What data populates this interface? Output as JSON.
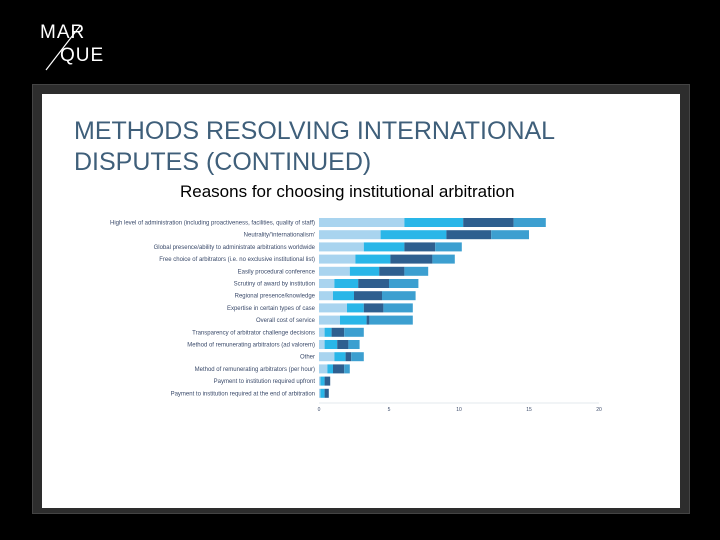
{
  "logo": {
    "line1": "MAR",
    "line2": "QUE"
  },
  "slide": {
    "title": "METHODS RESOLVING INTERNATIONAL DISPUTES (CONTINUED)",
    "subtitle": "Reasons for choosing institutional arbitration"
  },
  "colors": {
    "background": "#000000",
    "title": "#3f5f7a",
    "series": [
      "#a9d4ef",
      "#29b6e8",
      "#2e5f8f",
      "#3c9fd0"
    ]
  },
  "chart_data": {
    "type": "bar",
    "orientation": "horizontal",
    "stacked": true,
    "categories": [
      "High level of administration (including proactiveness, facilities, quality of staff)",
      "Neutrality/'internationalism'",
      "Global presence/ability to administrate arbitrations worldwide",
      "Free choice of arbitrators (i.e. no exclusive institutional list)",
      "Easily procedural conference",
      "Scrutiny of award by institution",
      "Regional presence/knowledge",
      "Expertise in certain types of case",
      "Overall cost of service",
      "Transparency of arbitrator challenge decisions",
      "Method of remunerating arbitrators (ad valorem)",
      "Other",
      "Method of remunerating arbitrators (per hour)",
      "Payment to institution required upfront",
      "Payment to institution required at the end of arbitration"
    ],
    "series": [
      {
        "values": [
          6.1,
          4.4,
          3.2,
          2.6,
          2.2,
          1.1,
          1.0,
          2.0,
          1.5,
          0.4,
          0.4,
          1.1,
          0.6,
          0.1,
          0.1
        ]
      },
      {
        "values": [
          4.2,
          4.7,
          2.9,
          2.5,
          2.1,
          1.7,
          1.5,
          1.2,
          1.9,
          0.5,
          0.9,
          0.8,
          0.4,
          0.3,
          0.3
        ]
      },
      {
        "values": [
          3.6,
          3.2,
          2.2,
          3.0,
          1.8,
          2.2,
          2.0,
          1.4,
          0.2,
          0.9,
          0.8,
          0.4,
          0.8,
          0.4,
          0.3
        ]
      },
      {
        "values": [
          2.3,
          2.7,
          1.9,
          1.6,
          1.7,
          2.1,
          2.4,
          2.1,
          3.1,
          1.4,
          0.8,
          0.9,
          0.4,
          0.0,
          0.0
        ]
      }
    ],
    "xlim": [
      0,
      20
    ],
    "xticks": [
      "0",
      "5",
      "10",
      "15",
      "20"
    ],
    "grid": false,
    "legend": "none"
  }
}
